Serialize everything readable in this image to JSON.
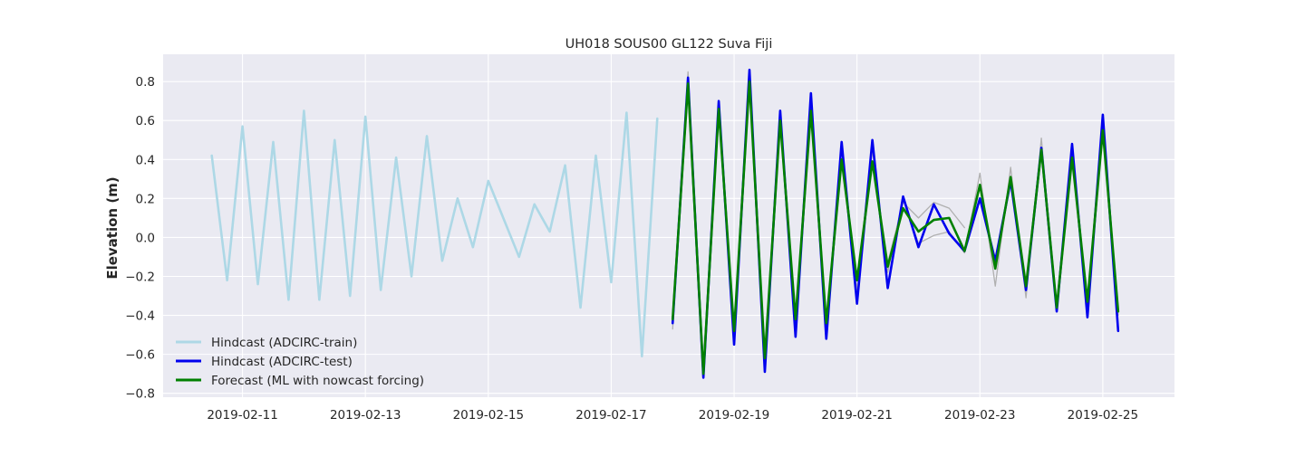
{
  "chart_data": {
    "type": "line",
    "title": "UH018 SOUS00 GL122 Suva Fiji",
    "xlabel": "",
    "ylabel": "Elevation (m)",
    "xlim": [
      "2019-02-09T17:00",
      "2019-02-26T04:00"
    ],
    "ylim": [
      -0.82,
      0.94
    ],
    "xticks": [
      "2019-02-11",
      "2019-02-13",
      "2019-02-15",
      "2019-02-17",
      "2019-02-19",
      "2019-02-21",
      "2019-02-23",
      "2019-02-25"
    ],
    "yticks": [
      -0.8,
      -0.6,
      -0.4,
      -0.2,
      0.0,
      0.2,
      0.4,
      0.6,
      0.8
    ],
    "ytick_labels": [
      "−0.8",
      "−0.6",
      "−0.4",
      "−0.2",
      "0.0",
      "0.2",
      "0.4",
      "0.6",
      "0.8"
    ],
    "grid": true,
    "legend_position": "lower-left",
    "series": [
      {
        "name": "Hindcast (ADCIRC-train)",
        "color": "#add8e6",
        "x": [
          "2019-02-10T12:00",
          "2019-02-10T18:00",
          "2019-02-11T00:00",
          "2019-02-11T06:00",
          "2019-02-11T12:00",
          "2019-02-11T18:00",
          "2019-02-12T00:00",
          "2019-02-12T06:00",
          "2019-02-12T12:00",
          "2019-02-12T18:00",
          "2019-02-13T00:00",
          "2019-02-13T06:00",
          "2019-02-13T12:00",
          "2019-02-13T18:00",
          "2019-02-14T00:00",
          "2019-02-14T06:00",
          "2019-02-14T12:00",
          "2019-02-14T18:00",
          "2019-02-15T00:00",
          "2019-02-15T12:00",
          "2019-02-15T18:00",
          "2019-02-16T00:00",
          "2019-02-16T06:00",
          "2019-02-16T12:00",
          "2019-02-16T18:00",
          "2019-02-17T00:00",
          "2019-02-17T06:00",
          "2019-02-17T12:00",
          "2019-02-17T18:00"
        ],
        "values": [
          0.42,
          -0.22,
          0.57,
          -0.24,
          0.49,
          -0.32,
          0.65,
          -0.32,
          0.5,
          -0.3,
          0.62,
          -0.27,
          0.41,
          -0.2,
          0.52,
          -0.12,
          0.2,
          -0.05,
          0.29,
          -0.1,
          0.17,
          0.03,
          0.37,
          -0.36,
          0.42,
          -0.23,
          0.64,
          -0.61,
          0.61
        ]
      },
      {
        "name": "",
        "color": "#b0b0b0",
        "x": [
          "2019-02-18T00:00",
          "2019-02-18T06:00",
          "2019-02-18T12:00",
          "2019-02-18T18:00",
          "2019-02-19T00:00",
          "2019-02-19T06:00",
          "2019-02-19T12:00",
          "2019-02-19T18:00",
          "2019-02-20T00:00",
          "2019-02-20T06:00",
          "2019-02-20T12:00",
          "2019-02-20T18:00",
          "2019-02-21T00:00",
          "2019-02-21T06:00",
          "2019-02-21T12:00",
          "2019-02-21T18:00",
          "2019-02-22T00:00",
          "2019-02-22T06:00",
          "2019-02-22T12:00",
          "2019-02-22T18:00",
          "2019-02-23T00:00",
          "2019-02-23T06:00",
          "2019-02-23T12:00",
          "2019-02-23T18:00",
          "2019-02-24T00:00",
          "2019-02-24T06:00",
          "2019-02-24T12:00",
          "2019-02-24T18:00",
          "2019-02-25T00:00",
          "2019-02-25T06:00"
        ],
        "values": [
          -0.47,
          0.85,
          -0.7,
          0.68,
          -0.5,
          0.83,
          -0.65,
          0.62,
          -0.45,
          0.7,
          -0.47,
          0.45,
          -0.27,
          0.45,
          -0.18,
          0.2,
          -0.03,
          0.01,
          0.03,
          -0.08,
          0.33,
          -0.25,
          0.36,
          -0.31,
          0.51,
          -0.38,
          0.45,
          -0.37,
          0.59,
          -0.4
        ]
      },
      {
        "name": "",
        "color": "#b0b0b0",
        "x": [
          "2019-02-21T12:00",
          "2019-02-21T18:00",
          "2019-02-22T00:00",
          "2019-02-22T06:00",
          "2019-02-22T12:00",
          "2019-02-22T18:00"
        ],
        "values": [
          -0.13,
          0.18,
          0.1,
          0.18,
          0.15,
          0.05
        ]
      },
      {
        "name": "Hindcast (ADCIRC-test)",
        "color": "#0000ee",
        "x": [
          "2019-02-18T00:00",
          "2019-02-18T06:00",
          "2019-02-18T12:00",
          "2019-02-18T18:00",
          "2019-02-19T00:00",
          "2019-02-19T06:00",
          "2019-02-19T12:00",
          "2019-02-19T18:00",
          "2019-02-20T00:00",
          "2019-02-20T06:00",
          "2019-02-20T12:00",
          "2019-02-20T18:00",
          "2019-02-21T00:00",
          "2019-02-21T06:00",
          "2019-02-21T12:00",
          "2019-02-21T18:00",
          "2019-02-22T00:00",
          "2019-02-22T06:00",
          "2019-02-22T12:00",
          "2019-02-22T18:00",
          "2019-02-23T00:00",
          "2019-02-23T06:00",
          "2019-02-23T12:00",
          "2019-02-23T18:00",
          "2019-02-24T00:00",
          "2019-02-24T06:00",
          "2019-02-24T12:00",
          "2019-02-24T18:00",
          "2019-02-25T00:00",
          "2019-02-25T06:00"
        ],
        "values": [
          -0.44,
          0.82,
          -0.72,
          0.7,
          -0.55,
          0.86,
          -0.69,
          0.65,
          -0.51,
          0.74,
          -0.52,
          0.49,
          -0.34,
          0.5,
          -0.26,
          0.21,
          -0.05,
          0.17,
          0.02,
          -0.07,
          0.2,
          -0.12,
          0.29,
          -0.27,
          0.46,
          -0.38,
          0.48,
          -0.41,
          0.63,
          -0.48
        ]
      },
      {
        "name": "Forecast (ML with nowcast forcing)",
        "color": "#008000",
        "x": [
          "2019-02-18T00:00",
          "2019-02-18T06:00",
          "2019-02-18T12:00",
          "2019-02-18T18:00",
          "2019-02-19T00:00",
          "2019-02-19T06:00",
          "2019-02-19T12:00",
          "2019-02-19T18:00",
          "2019-02-20T00:00",
          "2019-02-20T06:00",
          "2019-02-20T12:00",
          "2019-02-20T18:00",
          "2019-02-21T00:00",
          "2019-02-21T06:00",
          "2019-02-21T12:00",
          "2019-02-21T18:00",
          "2019-02-22T00:00",
          "2019-02-22T06:00",
          "2019-02-22T12:00",
          "2019-02-22T18:00",
          "2019-02-23T00:00",
          "2019-02-23T06:00",
          "2019-02-23T12:00",
          "2019-02-23T18:00",
          "2019-02-24T00:00",
          "2019-02-24T06:00",
          "2019-02-24T12:00",
          "2019-02-24T18:00",
          "2019-02-25T00:00",
          "2019-02-25T06:00"
        ],
        "values": [
          -0.42,
          0.79,
          -0.7,
          0.66,
          -0.48,
          0.8,
          -0.62,
          0.6,
          -0.42,
          0.65,
          -0.44,
          0.4,
          -0.22,
          0.39,
          -0.15,
          0.15,
          0.03,
          0.09,
          0.1,
          -0.07,
          0.27,
          -0.16,
          0.31,
          -0.25,
          0.45,
          -0.36,
          0.41,
          -0.33,
          0.55,
          -0.38
        ]
      }
    ],
    "legend": [
      {
        "label": "Hindcast (ADCIRC-train)",
        "color": "#add8e6"
      },
      {
        "label": "Hindcast (ADCIRC-test)",
        "color": "#0000ee"
      },
      {
        "label": "Forecast (ML with nowcast forcing)",
        "color": "#008000"
      }
    ],
    "colors": {
      "plot_background": "#eaeaf2",
      "grid": "#ffffff",
      "text": "#262626"
    }
  }
}
